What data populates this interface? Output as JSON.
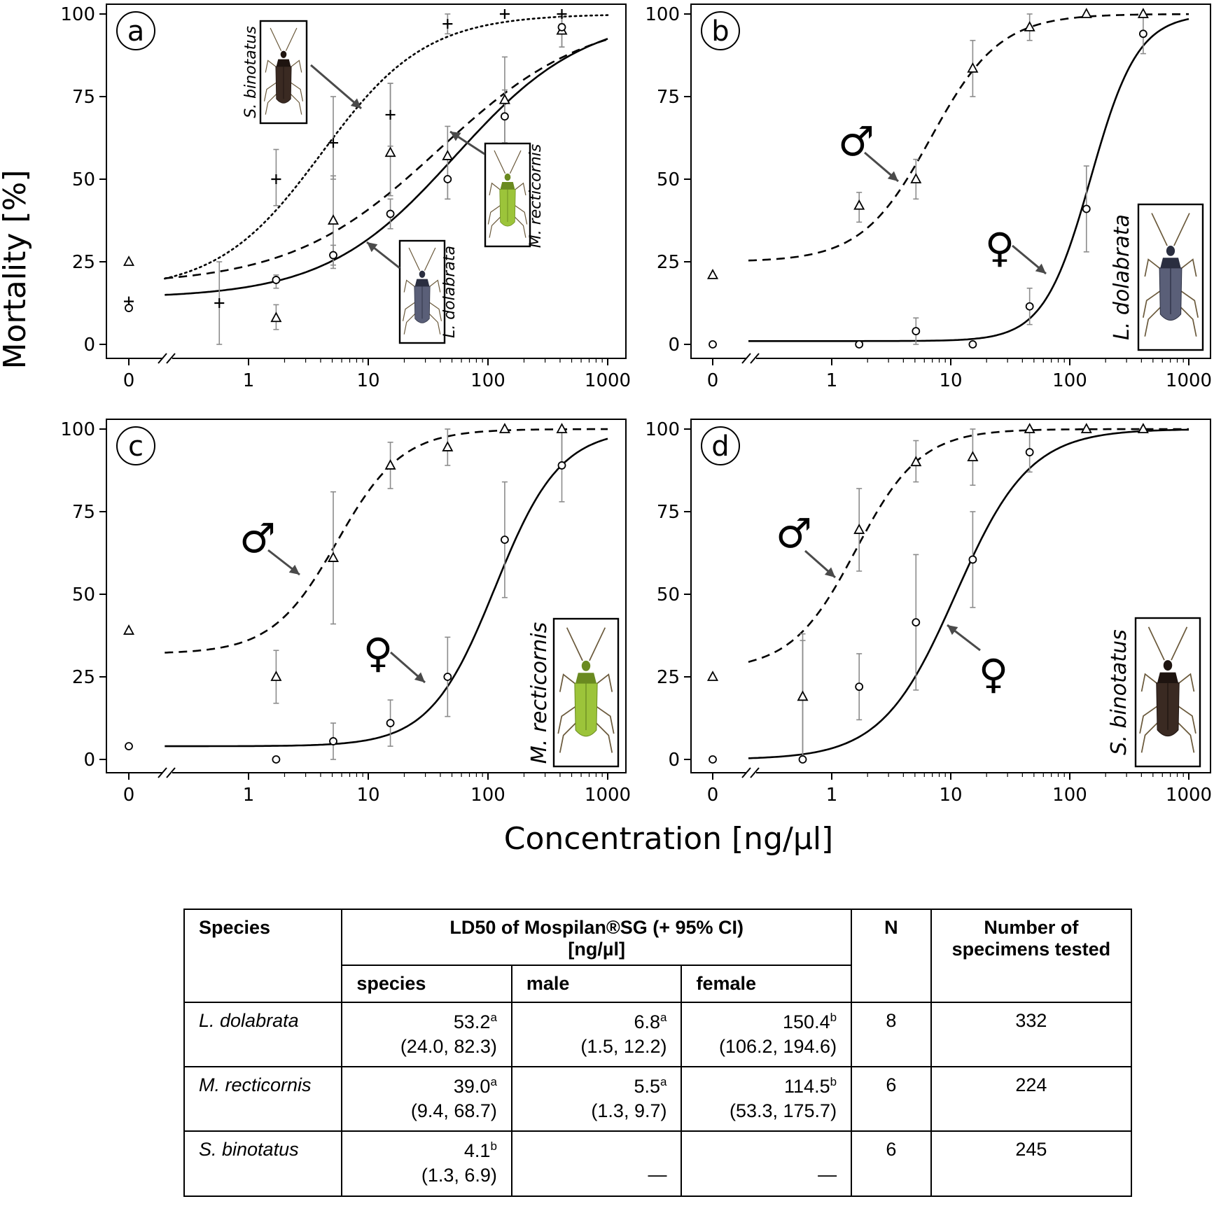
{
  "figure": {
    "y_axis_label": "Mortality [%]",
    "x_axis_label": "Concentration [ng/µl]",
    "y_ticks": [
      "0",
      "25",
      "50",
      "75",
      "100"
    ],
    "x_ticks": [
      "0",
      "1",
      "10",
      "100",
      "1000"
    ],
    "male_symbol": "♂",
    "female_symbol": "♀"
  },
  "chart_data": [
    {
      "panel": "a",
      "type": "scatter",
      "xlabel": "Concentration [ng/µl]",
      "ylabel": "Mortality [%]",
      "xscale": "log (with 0 control point)",
      "ylim": [
        0,
        100
      ],
      "series": [
        {
          "name": "S. binotatus",
          "marker": "plus",
          "curve": "dotted",
          "x": [
            0,
            0.57,
            1.7,
            5.1,
            15.3,
            46,
            138,
            414
          ],
          "y": [
            13,
            12.5,
            50,
            61,
            69.5,
            97,
            100,
            100
          ],
          "err": [
            null,
            [
              0,
              25
            ],
            [
              42,
              59
            ],
            [
              50,
              75
            ],
            [
              60,
              79
            ],
            [
              94,
              100
            ],
            null,
            [
              97,
              100
            ]
          ]
        },
        {
          "name": "M. recticornis",
          "marker": "triangle",
          "curve": "dashed",
          "x": [
            0,
            1.7,
            5.1,
            15.3,
            46,
            138,
            414
          ],
          "y": [
            25,
            8,
            37.5,
            58,
            57,
            74,
            95
          ],
          "err": [
            null,
            [
              4.5,
              12
            ],
            [
              23,
              51
            ],
            [
              45,
              79
            ],
            [
              44,
              66
            ],
            [
              61,
              87
            ],
            [
              90,
              99
            ]
          ]
        },
        {
          "name": "L. dolabrata",
          "marker": "circle",
          "curve": "solid",
          "x": [
            0,
            1.7,
            5.1,
            15.3,
            46,
            138,
            414
          ],
          "y": [
            11,
            19.5,
            27,
            39.5,
            50,
            69,
            96
          ],
          "err": [
            null,
            [
              17,
              21
            ],
            [
              24,
              30
            ],
            [
              35,
              44
            ],
            [
              44,
              56
            ],
            [
              61,
              77
            ],
            [
              90,
              99
            ]
          ]
        }
      ],
      "insets": [
        "S. binotatus",
        "M. recticornis",
        "L. dolabrata"
      ]
    },
    {
      "panel": "b",
      "type": "scatter",
      "species": "L. dolabrata",
      "ylim": [
        0,
        100
      ],
      "series": [
        {
          "name": "male",
          "marker": "triangle",
          "curve": "dashed",
          "x": [
            0,
            1.7,
            5.1,
            15.3,
            46,
            138,
            414
          ],
          "y": [
            21,
            42,
            50,
            83.5,
            96,
            100,
            100
          ],
          "err": [
            null,
            [
              37,
              46
            ],
            [
              44,
              56
            ],
            [
              75,
              92
            ],
            [
              92,
              100
            ],
            null,
            null
          ]
        },
        {
          "name": "female",
          "marker": "circle",
          "curve": "solid",
          "x": [
            0,
            1.7,
            5.1,
            15.3,
            46,
            138,
            414
          ],
          "y": [
            0,
            0,
            4,
            0,
            11.5,
            41,
            94
          ],
          "err": [
            null,
            null,
            [
              0,
              8
            ],
            null,
            [
              6,
              17
            ],
            [
              28,
              54
            ],
            [
              88,
              100
            ]
          ]
        }
      ]
    },
    {
      "panel": "c",
      "type": "scatter",
      "species": "M. recticornis",
      "ylim": [
        0,
        100
      ],
      "series": [
        {
          "name": "male",
          "marker": "triangle",
          "curve": "dashed",
          "x": [
            0,
            1.7,
            5.1,
            15.3,
            46,
            138,
            414
          ],
          "y": [
            39,
            25,
            61,
            89,
            94.5,
            100,
            100
          ],
          "err": [
            null,
            [
              17,
              33
            ],
            [
              41,
              81
            ],
            [
              82,
              96
            ],
            [
              89,
              100
            ],
            null,
            [
              89,
              100
            ]
          ]
        },
        {
          "name": "female",
          "marker": "circle",
          "curve": "solid",
          "x": [
            0,
            1.7,
            5.1,
            15.3,
            46,
            138,
            414
          ],
          "y": [
            4,
            0,
            5.5,
            11,
            25,
            66.5,
            89
          ],
          "err": [
            null,
            null,
            [
              0,
              11
            ],
            [
              4,
              18
            ],
            [
              13,
              37
            ],
            [
              49,
              84
            ],
            [
              78,
              100
            ]
          ]
        }
      ]
    },
    {
      "panel": "d",
      "type": "scatter",
      "species": "S. binotatus",
      "ylim": [
        0,
        100
      ],
      "series": [
        {
          "name": "male",
          "marker": "triangle",
          "curve": "dashed",
          "x": [
            0,
            0.57,
            1.7,
            5.1,
            15.3,
            46,
            138,
            414
          ],
          "y": [
            25,
            19,
            69.5,
            90,
            91.5,
            100,
            100,
            100
          ],
          "err": [
            null,
            [
              0,
              38
            ],
            [
              57,
              82
            ],
            [
              84,
              96.5
            ],
            [
              83,
              100
            ],
            [
              93,
              100
            ],
            null,
            null
          ]
        },
        {
          "name": "female",
          "marker": "circle",
          "curve": "solid",
          "x": [
            0,
            0.57,
            1.7,
            5.1,
            15.3,
            46
          ],
          "y": [
            0,
            0,
            22,
            41.5,
            60.5,
            93
          ],
          "err": [
            null,
            [
              0,
              36
            ],
            [
              12,
              32
            ],
            [
              21,
              62
            ],
            [
              46,
              75
            ],
            [
              87,
              99
            ]
          ]
        }
      ]
    }
  ],
  "curves": {
    "a": [
      {
        "style": "dotted",
        "lower": 16,
        "upper": 100,
        "ld50": 4.1,
        "slope": 1.0
      },
      {
        "style": "dashed",
        "lower": 18,
        "upper": 100,
        "ld50": 39.0,
        "slope": 0.7
      },
      {
        "style": "solid",
        "lower": 14,
        "upper": 100,
        "ld50": 53.2,
        "slope": 0.8
      }
    ],
    "b": [
      {
        "style": "dashed",
        "lower": 25,
        "upper": 100,
        "ld50": 6.8,
        "slope": 1.5
      },
      {
        "style": "solid",
        "lower": 1,
        "upper": 100,
        "ld50": 150.4,
        "slope": 2.2
      }
    ],
    "c": [
      {
        "style": "dashed",
        "lower": 32,
        "upper": 100,
        "ld50": 5.5,
        "slope": 1.6
      },
      {
        "style": "solid",
        "lower": 4,
        "upper": 100,
        "ld50": 114.5,
        "slope": 1.6
      }
    ],
    "d": [
      {
        "style": "dashed",
        "lower": 27,
        "upper": 100,
        "ld50": 1.6,
        "slope": 1.6
      },
      {
        "style": "solid",
        "lower": 0,
        "upper": 100,
        "ld50": 11,
        "slope": 1.4
      }
    ]
  },
  "table": {
    "headers": {
      "species": "Species",
      "ld50_line1": "LD50 of Mospilan®SG (+ 95% CI)",
      "ld50_line2": "[ng/µl]",
      "n": "N",
      "specimens_line1": "Number of",
      "specimens_line2": "specimens tested",
      "sub_species": "species",
      "sub_male": "male",
      "sub_female": "female"
    },
    "rows": [
      {
        "name": "L. dolabrata",
        "species_val": "53.2",
        "species_sup": "a",
        "species_ci": "(24.0, 82.3)",
        "male_val": "6.8",
        "male_sup": "a",
        "male_ci": "(1.5, 12.2)",
        "female_val": "150.4",
        "female_sup": "b",
        "female_ci": "(106.2, 194.6)",
        "n": "8",
        "specimens": "332"
      },
      {
        "name": "M. recticornis",
        "species_val": "39.0",
        "species_sup": "a",
        "species_ci": "(9.4, 68.7)",
        "male_val": "5.5",
        "male_sup": "a",
        "male_ci": "(1.3, 9.7)",
        "female_val": "114.5",
        "female_sup": "b",
        "female_ci": "(53.3, 175.7)",
        "n": "6",
        "specimens": "224"
      },
      {
        "name": "S. binotatus",
        "species_val": "4.1",
        "species_sup": "b",
        "species_ci": "(1.3, 6.9)",
        "male_dash": "—",
        "female_dash": "—",
        "n": "6",
        "specimens": "245"
      }
    ]
  }
}
